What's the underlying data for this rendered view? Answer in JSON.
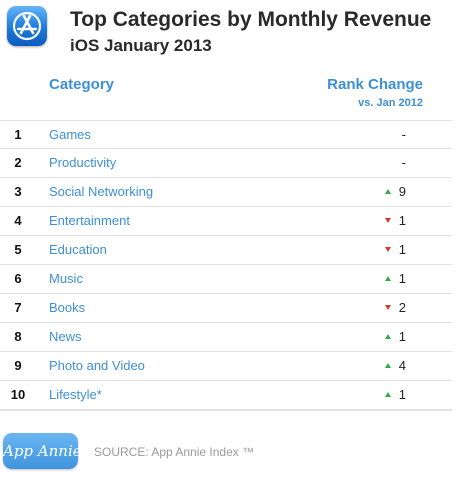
{
  "header": {
    "title": "Top Categories by Monthly Revenue",
    "subtitle": "iOS January 2013",
    "app_icon": "app-store-icon"
  },
  "columns": {
    "category": "Category",
    "rank_change": "Rank Change",
    "rank_change_sub": "vs. Jan 2012"
  },
  "chart_data": {
    "type": "table",
    "title": "Top Categories by Monthly Revenue",
    "subtitle": "iOS January 2013",
    "columns": [
      "Category",
      "Rank Change"
    ],
    "rows": [
      {
        "rank": "1",
        "category": "Games",
        "direction": "none",
        "change": "-"
      },
      {
        "rank": "2",
        "category": "Productivity",
        "direction": "none",
        "change": "-"
      },
      {
        "rank": "3",
        "category": "Social Networking",
        "direction": "up",
        "change": "9"
      },
      {
        "rank": "4",
        "category": "Entertainment",
        "direction": "down",
        "change": "1"
      },
      {
        "rank": "5",
        "category": "Education",
        "direction": "down",
        "change": "1"
      },
      {
        "rank": "6",
        "category": "Music",
        "direction": "up",
        "change": "1"
      },
      {
        "rank": "7",
        "category": "Books",
        "direction": "down",
        "change": "2"
      },
      {
        "rank": "8",
        "category": "News",
        "direction": "up",
        "change": "1"
      },
      {
        "rank": "9",
        "category": "Photo and Video",
        "direction": "up",
        "change": "4"
      },
      {
        "rank": "10",
        "category": "Lifestyle*",
        "direction": "up",
        "change": "1"
      }
    ],
    "colors": {
      "up": "#2fae46",
      "down": "#d23a2d",
      "category": "#3d8fd6"
    }
  },
  "footer": {
    "logo_text": "App Annie",
    "source": "SOURCE: App Annie Index ™"
  }
}
